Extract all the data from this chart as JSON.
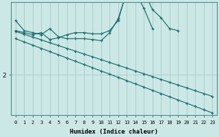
{
  "xlabel": "Humidex (Indice chaleur)",
  "bg_color": "#cce8e6",
  "grid_color": "#aaccca",
  "line_color": "#1a7070",
  "y_label_2": 2,
  "ylim": [
    1.0,
    3.8
  ],
  "xlim": [
    -0.5,
    23.5
  ],
  "figsize": [
    3.2,
    2.0
  ],
  "dpi": 100,
  "lines": {
    "line1": {
      "x": [
        0,
        1,
        2,
        3,
        4,
        5,
        6,
        7,
        8,
        9,
        10,
        11,
        12,
        13,
        14,
        15,
        16
      ],
      "y": [
        3.35,
        3.1,
        3.05,
        3.0,
        3.15,
        2.95,
        2.9,
        2.9,
        2.9,
        2.88,
        2.85,
        3.05,
        3.4,
        4.05,
        4.05,
        3.65,
        3.15
      ]
    },
    "line2": {
      "x": [
        0,
        1,
        2,
        3,
        4,
        5,
        6,
        7,
        8,
        9,
        10,
        11,
        12,
        13,
        14,
        15,
        16,
        17,
        18,
        19
      ],
      "y": [
        3.1,
        3.05,
        3.0,
        3.05,
        2.88,
        2.92,
        3.0,
        3.05,
        3.05,
        3.02,
        3.02,
        3.1,
        3.35,
        4.1,
        4.05,
        4.08,
        3.62,
        3.42,
        3.15,
        3.1
      ]
    },
    "line3": {
      "x": [
        0,
        1,
        2,
        3,
        4,
        5,
        6,
        7,
        8,
        9,
        10,
        11,
        12,
        13,
        14,
        15,
        16,
        17,
        18,
        19,
        20,
        21,
        22,
        23
      ],
      "y": [
        3.08,
        3.01,
        2.94,
        2.87,
        2.8,
        2.73,
        2.66,
        2.59,
        2.52,
        2.45,
        2.38,
        2.31,
        2.24,
        2.17,
        2.1,
        2.03,
        1.96,
        1.89,
        1.82,
        1.75,
        1.68,
        1.61,
        1.54,
        1.47
      ]
    },
    "line4": {
      "x": [
        0,
        1,
        2,
        3,
        4,
        5,
        6,
        7,
        8,
        9,
        10,
        11,
        12,
        13,
        14,
        15,
        16,
        17,
        18,
        19,
        20,
        21,
        22,
        23
      ],
      "y": [
        2.9,
        2.82,
        2.74,
        2.66,
        2.58,
        2.5,
        2.42,
        2.34,
        2.26,
        2.18,
        2.1,
        2.02,
        1.94,
        1.86,
        1.78,
        1.7,
        1.62,
        1.54,
        1.46,
        1.38,
        1.3,
        1.22,
        1.14,
        1.06
      ]
    }
  }
}
